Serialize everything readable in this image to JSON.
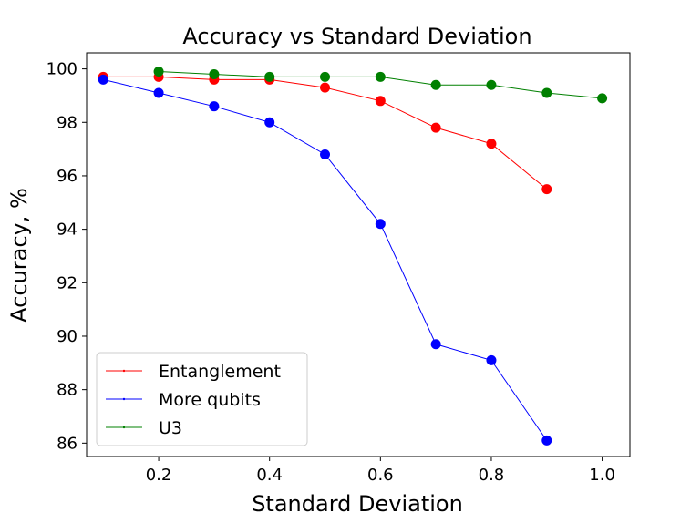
{
  "chart_data": {
    "type": "line",
    "title": "Accuracy vs Standard Deviation",
    "xlabel": "Standard Deviation",
    "ylabel": "Accuracy, %",
    "xlim": [
      0.07,
      1.05
    ],
    "ylim": [
      85.5,
      100.6
    ],
    "x_ticks": [
      0.2,
      0.4,
      0.6,
      0.8,
      1.0
    ],
    "x_tick_labels": [
      "0.2",
      "0.4",
      "0.6",
      "0.8",
      "1.0"
    ],
    "y_ticks": [
      86,
      88,
      90,
      92,
      94,
      96,
      98,
      100
    ],
    "y_tick_labels": [
      "86",
      "88",
      "90",
      "92",
      "94",
      "96",
      "98",
      "100"
    ],
    "grid": false,
    "legend_position": "lower-left",
    "series": [
      {
        "name": "Entanglement",
        "color": "#ff0000",
        "x": [
          0.1,
          0.2,
          0.3,
          0.4,
          0.5,
          0.6,
          0.7,
          0.8,
          0.9
        ],
        "y": [
          99.7,
          99.7,
          99.6,
          99.6,
          99.3,
          98.8,
          97.8,
          97.2,
          95.5
        ]
      },
      {
        "name": "More qubits",
        "color": "#0000ff",
        "x": [
          0.1,
          0.2,
          0.3,
          0.4,
          0.5,
          0.6,
          0.7,
          0.8,
          0.9
        ],
        "y": [
          99.6,
          99.1,
          98.6,
          98.0,
          96.8,
          94.2,
          89.7,
          89.1,
          86.1
        ]
      },
      {
        "name": "U3",
        "color": "#008000",
        "x": [
          0.2,
          0.3,
          0.4,
          0.5,
          0.6,
          0.7,
          0.8,
          0.9,
          1.0
        ],
        "y": [
          99.9,
          99.8,
          99.7,
          99.7,
          99.7,
          99.4,
          99.4,
          99.1,
          98.9
        ]
      }
    ]
  }
}
